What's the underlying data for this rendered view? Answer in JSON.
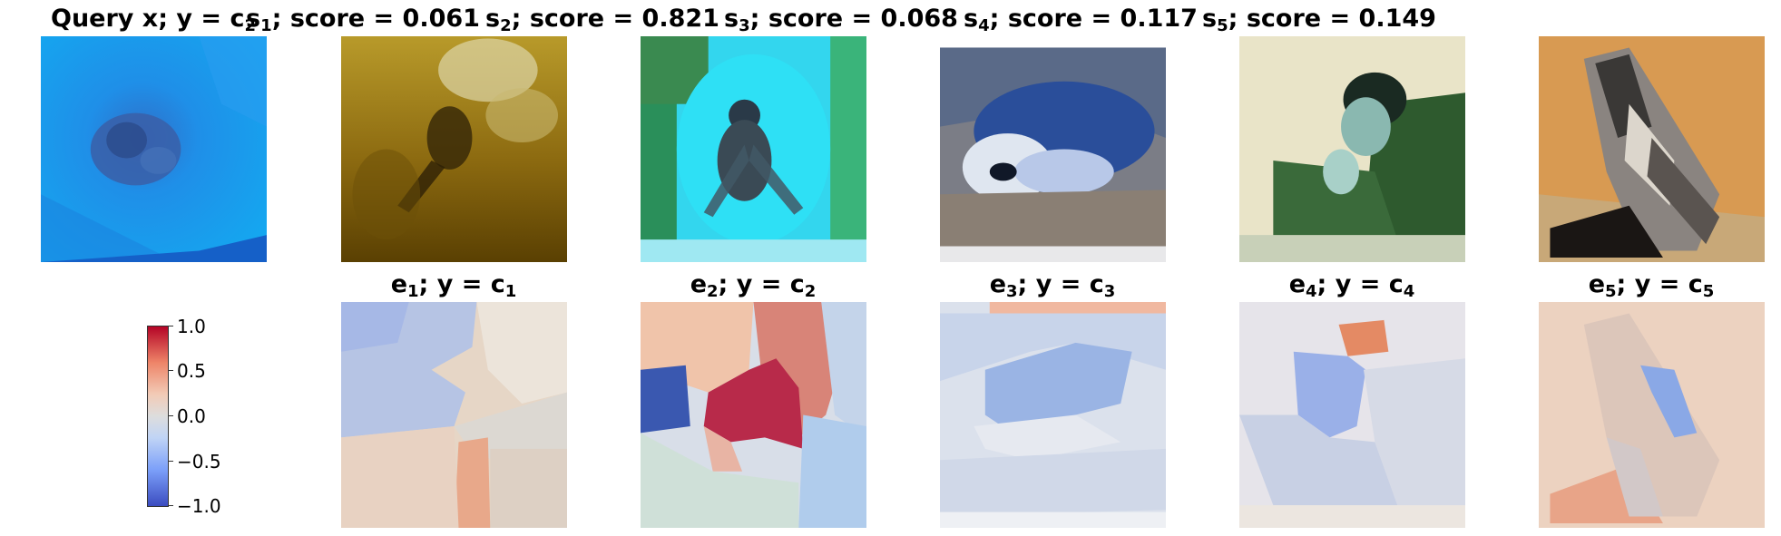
{
  "query": {
    "label": "Query x; ",
    "y_text": "y = c",
    "y_sub": "2"
  },
  "samples": [
    {
      "sym": "s",
      "sub": "1",
      "score_text": "; score = 0.061"
    },
    {
      "sym": "s",
      "sub": "2",
      "score_text": "; score = 0.821"
    },
    {
      "sym": "s",
      "sub": "3",
      "score_text": "; score = 0.068"
    },
    {
      "sym": "s",
      "sub": "4",
      "score_text": "; score = 0.117"
    },
    {
      "sym": "s",
      "sub": "5",
      "score_text": "; score = 0.149"
    }
  ],
  "explanations": [
    {
      "sym": "e",
      "sub": "1",
      "y_text": "; y = c",
      "y_sub": "1"
    },
    {
      "sym": "e",
      "sub": "2",
      "y_text": "; y = c",
      "y_sub": "2"
    },
    {
      "sym": "e",
      "sub": "3",
      "y_text": "; y = c",
      "y_sub": "3"
    },
    {
      "sym": "e",
      "sub": "4",
      "y_text": "; y = c",
      "y_sub": "4"
    },
    {
      "sym": "e",
      "sub": "5",
      "y_text": "; y = c",
      "y_sub": "5"
    }
  ],
  "colorbar": {
    "ticks": [
      "1.0",
      "0.5",
      "0.0",
      "−0.5",
      "−1.0"
    ],
    "colormap": "coolwarm"
  }
}
